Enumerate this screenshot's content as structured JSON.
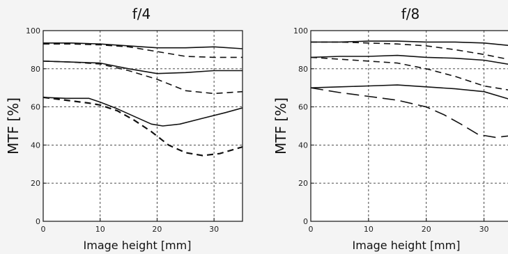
{
  "page": {
    "background": "#f4f4f4"
  },
  "chart_data": [
    {
      "type": "line",
      "title": "f/4",
      "xlabel": "Image height [mm]",
      "ylabel": "MTF [%]",
      "xlim": [
        0,
        35
      ],
      "ylim": [
        0,
        100
      ],
      "xticks": [
        0,
        10,
        20,
        30
      ],
      "yticks": [
        0,
        20,
        40,
        60,
        80,
        100
      ],
      "grid": true,
      "series": [
        {
          "style": "solid",
          "x": [
            0,
            5,
            10,
            15,
            20,
            25,
            30,
            35
          ],
          "y": [
            93.5,
            93.5,
            93,
            92,
            91,
            91,
            91.5,
            90.5
          ]
        },
        {
          "style": "dashed",
          "x": [
            0,
            5,
            10,
            15,
            20,
            25,
            30,
            35
          ],
          "y": [
            93,
            93,
            92.5,
            91.5,
            89,
            86.5,
            86,
            86
          ]
        },
        {
          "style": "solid",
          "x": [
            0,
            5,
            10,
            15,
            20,
            25,
            30,
            35
          ],
          "y": [
            84,
            83.5,
            83,
            80,
            77.5,
            78,
            79,
            79
          ]
        },
        {
          "style": "dashed",
          "x": [
            0,
            5,
            10,
            15,
            20,
            25,
            30,
            35
          ],
          "y": [
            84,
            83.5,
            82.5,
            79,
            74.5,
            68.5,
            67,
            68
          ]
        },
        {
          "style": "solid",
          "x": [
            0,
            4,
            8,
            10,
            13,
            16,
            19,
            21,
            24,
            28,
            32,
            35
          ],
          "y": [
            65,
            64.5,
            64.5,
            62.5,
            59,
            55,
            51,
            50,
            51,
            54,
            57,
            59.5
          ]
        },
        {
          "style": "dashed-bold",
          "x": [
            0,
            4,
            8,
            10,
            13,
            16,
            19,
            22,
            25,
            28,
            31,
            35
          ],
          "y": [
            65,
            63.5,
            62,
            61,
            58,
            53,
            47,
            40,
            36,
            34.5,
            35.5,
            39
          ]
        }
      ]
    },
    {
      "type": "line",
      "title": "f/8",
      "xlabel": "Image height [mm]",
      "ylabel": "MTF [%]",
      "xlim": [
        0,
        35
      ],
      "ylim": [
        0,
        100
      ],
      "xticks": [
        0,
        10,
        20,
        30
      ],
      "yticks": [
        0,
        20,
        40,
        60,
        80,
        100
      ],
      "grid": true,
      "series": [
        {
          "style": "solid",
          "x": [
            0,
            5,
            10,
            15,
            20,
            25,
            30,
            35
          ],
          "y": [
            94,
            94,
            94.5,
            94.5,
            94,
            94,
            93.5,
            92
          ]
        },
        {
          "style": "dashed",
          "x": [
            0,
            5,
            10,
            15,
            20,
            25,
            30,
            35
          ],
          "y": [
            94,
            94,
            93.5,
            93,
            92,
            90,
            87.5,
            84.5
          ]
        },
        {
          "style": "solid",
          "x": [
            0,
            5,
            10,
            15,
            20,
            25,
            30,
            35
          ],
          "y": [
            86,
            86.5,
            86.5,
            87,
            86,
            85.5,
            84.5,
            82
          ]
        },
        {
          "style": "dashed",
          "x": [
            0,
            5,
            10,
            15,
            20,
            25,
            30,
            35
          ],
          "y": [
            86,
            85,
            84,
            83,
            80,
            76,
            71,
            68.5
          ]
        },
        {
          "style": "solid",
          "x": [
            0,
            5,
            10,
            15,
            20,
            25,
            30,
            35
          ],
          "y": [
            70,
            70.5,
            71,
            71.5,
            70.5,
            69.5,
            68,
            63.5
          ]
        },
        {
          "style": "dashed-long",
          "x": [
            0,
            5,
            10,
            15,
            20,
            23,
            26,
            29,
            32,
            35
          ],
          "y": [
            70,
            67.5,
            65.5,
            63.5,
            60,
            56,
            51,
            45.5,
            44,
            45
          ]
        }
      ]
    }
  ]
}
